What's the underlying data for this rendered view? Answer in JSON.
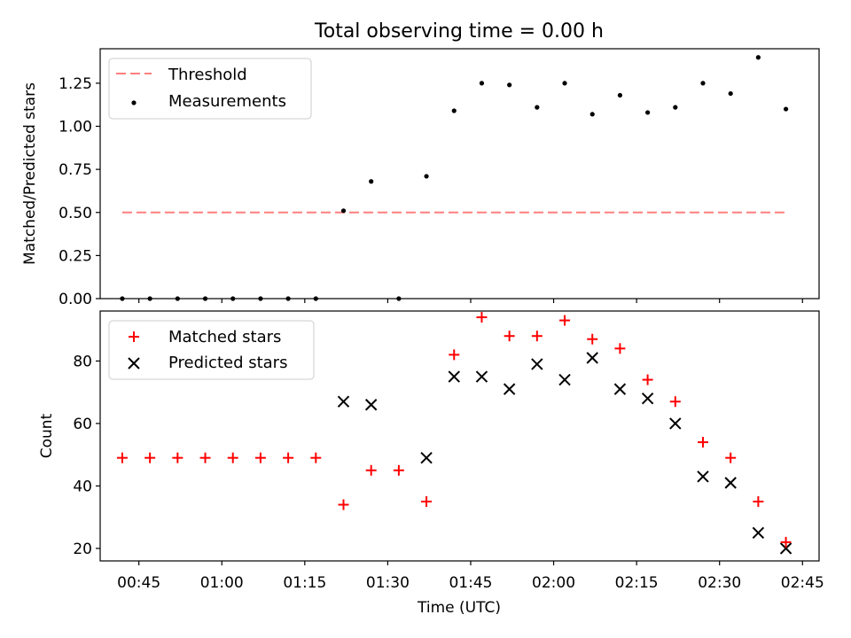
{
  "chart_data": [
    {
      "type": "scatter",
      "title": "Total observing time = 0.00 h",
      "ylabel": "Matched/Predicted stars",
      "xlabel": "",
      "ylim": [
        0,
        1.45
      ],
      "yticks": [
        "0.00",
        "0.25",
        "0.50",
        "0.75",
        "1.00",
        "1.25"
      ],
      "legend_position": "top-left",
      "threshold": {
        "name": "Threshold",
        "value": 0.5,
        "color": "#ff7f7f",
        "x_start": "00:42",
        "x_end": "02:42"
      },
      "series": [
        {
          "name": "Measurements",
          "color": "#000000",
          "x": [
            "00:42",
            "00:47",
            "00:52",
            "00:57",
            "01:02",
            "01:07",
            "01:12",
            "01:17",
            "01:22",
            "01:27",
            "01:32",
            "01:37",
            "01:42",
            "01:47",
            "01:52",
            "01:57",
            "02:02",
            "02:07",
            "02:12",
            "02:17",
            "02:22",
            "02:27",
            "02:32",
            "02:37",
            "02:42"
          ],
          "y": [
            0,
            0,
            0,
            0,
            0,
            0,
            0,
            0,
            0.51,
            0.68,
            0,
            0.71,
            1.09,
            1.25,
            1.24,
            1.11,
            1.25,
            1.07,
            1.18,
            1.08,
            1.11,
            1.25,
            1.19,
            1.4,
            1.1
          ]
        }
      ]
    },
    {
      "type": "scatter",
      "title": "",
      "ylabel": "Count",
      "xlabel": "Time (UTC)",
      "ylim": [
        16,
        96
      ],
      "yticks": [
        "20",
        "40",
        "60",
        "80"
      ],
      "xlim": [
        "00:38",
        "02:48"
      ],
      "xticks": [
        "00:45",
        "01:00",
        "01:15",
        "01:30",
        "01:45",
        "02:00",
        "02:15",
        "02:30",
        "02:45"
      ],
      "legend_position": "top-left",
      "series": [
        {
          "name": "Matched stars",
          "marker": "+",
          "color": "#ff0000",
          "x": [
            "00:42",
            "00:47",
            "00:52",
            "00:57",
            "01:02",
            "01:07",
            "01:12",
            "01:17",
            "01:22",
            "01:27",
            "01:32",
            "01:37",
            "01:42",
            "01:47",
            "01:52",
            "01:57",
            "02:02",
            "02:07",
            "02:12",
            "02:17",
            "02:22",
            "02:27",
            "02:32",
            "02:37",
            "02:42"
          ],
          "y": [
            49,
            49,
            49,
            49,
            49,
            49,
            49,
            49,
            34,
            45,
            45,
            35,
            82,
            94,
            88,
            88,
            93,
            87,
            84,
            74,
            67,
            54,
            49,
            35,
            22
          ]
        },
        {
          "name": "Predicted stars",
          "marker": "x",
          "color": "#000000",
          "x": [
            "01:22",
            "01:27",
            "01:37",
            "01:42",
            "01:47",
            "01:52",
            "01:57",
            "02:02",
            "02:07",
            "02:12",
            "02:17",
            "02:22",
            "02:27",
            "02:32",
            "02:37",
            "02:42"
          ],
          "y": [
            67,
            66,
            49,
            75,
            75,
            71,
            79,
            74,
            81,
            71,
            68,
            60,
            43,
            41,
            25,
            20
          ]
        }
      ]
    }
  ]
}
